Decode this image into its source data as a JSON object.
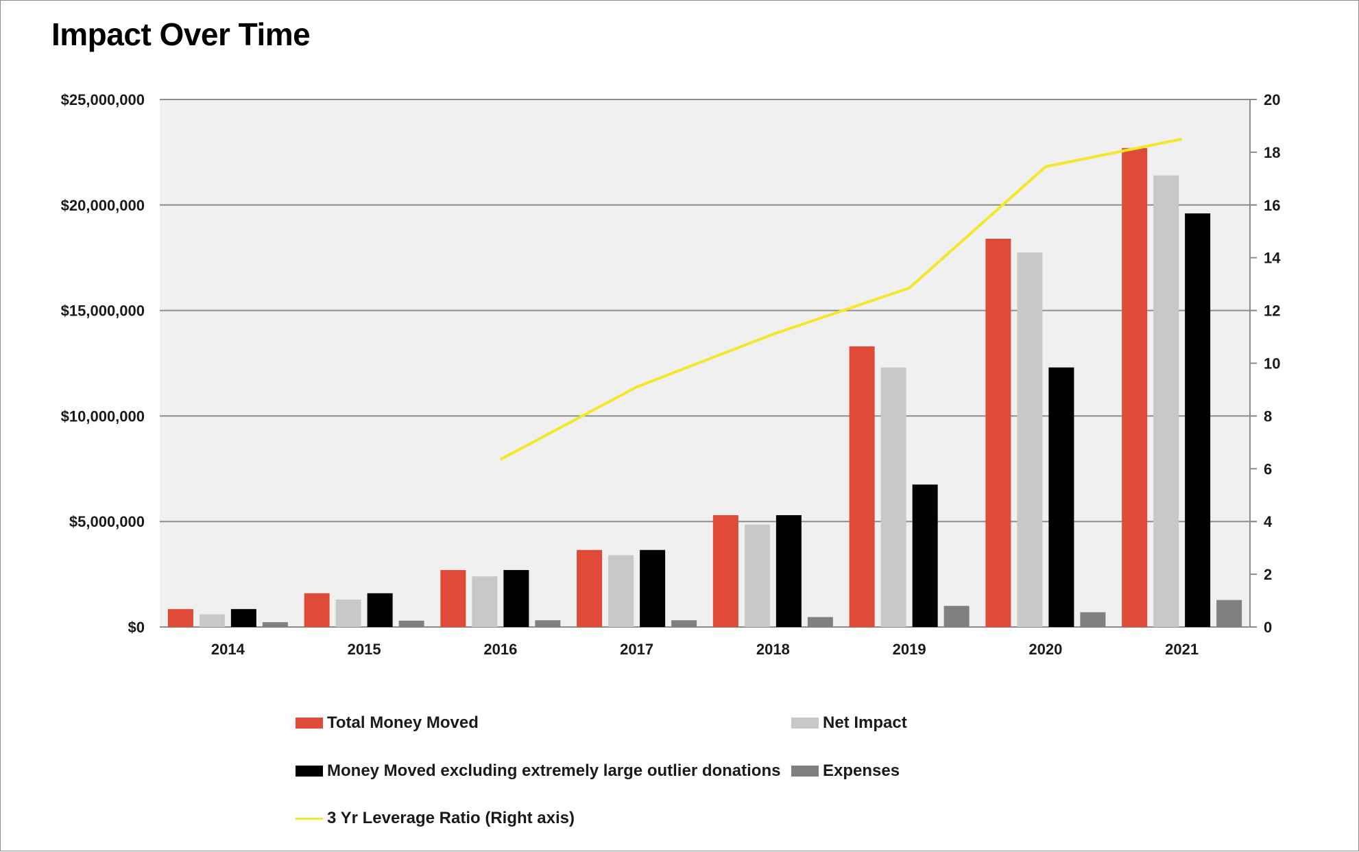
{
  "title": "Impact Over Time",
  "chart_data": {
    "type": "bar",
    "title": "Impact Over Time",
    "categories": [
      "2014",
      "2015",
      "2016",
      "2017",
      "2018",
      "2019",
      "2020",
      "2021"
    ],
    "y_left": {
      "label": "",
      "range": [
        0,
        25000000
      ],
      "ticks": [
        0,
        5000000,
        10000000,
        15000000,
        20000000,
        25000000
      ],
      "tick_labels": [
        "$0",
        "$5,000,000",
        "$10,000,000",
        "$15,000,000",
        "$20,000,000",
        "$25,000,000"
      ]
    },
    "y_right": {
      "label": "",
      "range": [
        0,
        20
      ],
      "ticks": [
        0,
        2,
        4,
        6,
        8,
        10,
        12,
        14,
        16,
        18,
        20
      ],
      "tick_labels": [
        "0",
        "2",
        "4",
        "6",
        "8",
        "10",
        "12",
        "14",
        "16",
        "18",
        "20"
      ]
    },
    "series": [
      {
        "name": "Total Money Moved",
        "type": "bar",
        "axis": "left",
        "color": "#e04a38",
        "values": [
          850000,
          1600000,
          2700000,
          3650000,
          5300000,
          13300000,
          18400000,
          22700000
        ]
      },
      {
        "name": "Net Impact",
        "type": "bar",
        "axis": "left",
        "color": "#c8c8c8",
        "values": [
          600000,
          1300000,
          2400000,
          3400000,
          4850000,
          12300000,
          17750000,
          21400000
        ]
      },
      {
        "name": "Money Moved excluding extremely large outlier donations",
        "type": "bar",
        "axis": "left",
        "color": "#000000",
        "values": [
          850000,
          1600000,
          2700000,
          3650000,
          5300000,
          6750000,
          12300000,
          19600000
        ]
      },
      {
        "name": "Expenses",
        "type": "bar",
        "axis": "left",
        "color": "#808080",
        "values": [
          230000,
          300000,
          320000,
          320000,
          470000,
          1000000,
          700000,
          1280000
        ]
      },
      {
        "name": "3 Yr Leverage Ratio (Right axis)",
        "type": "line",
        "axis": "right",
        "color": "#f2e829",
        "values": [
          null,
          null,
          6.35,
          9.1,
          11.1,
          12.85,
          17.45,
          18.5
        ]
      }
    ],
    "grid": true,
    "legend_position": "bottom"
  },
  "legend": {
    "items": [
      {
        "label": "Total Money Moved",
        "color": "#e04a38",
        "kind": "bar"
      },
      {
        "label": "Net Impact",
        "color": "#c8c8c8",
        "kind": "bar"
      },
      {
        "label": "Money Moved excluding extremely large outlier donations",
        "color": "#000000",
        "kind": "bar"
      },
      {
        "label": "Expenses",
        "color": "#808080",
        "kind": "bar"
      },
      {
        "label": "3 Yr Leverage Ratio (Right axis)",
        "color": "#f2e829",
        "kind": "line"
      }
    ]
  },
  "colors": {
    "plot_background": "#f0f0f0",
    "gridline": "#8c8c8c",
    "axis_text": "#1a1a1a"
  }
}
